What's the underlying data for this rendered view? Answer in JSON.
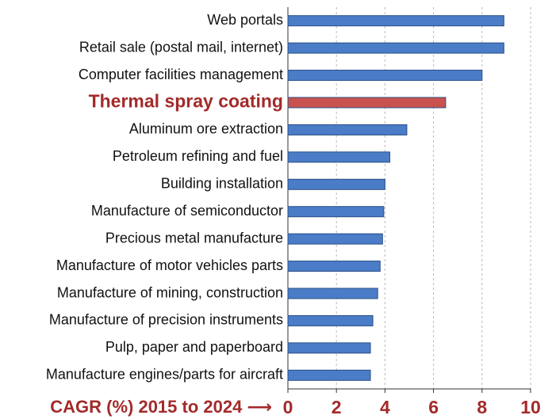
{
  "chart_data": {
    "type": "barh",
    "categories": [
      "Web portals",
      "Retail sale (postal mail, internet)",
      "Computer facilities management",
      "Thermal spray coating",
      "Aluminum ore extraction",
      "Petroleum refining and fuel",
      "Building installation",
      "Manufacture of semiconductor",
      "Precious metal manufacture",
      "Manufacture of motor vehicles parts",
      "Manufacture of mining, construction",
      "Manufacture of precision instruments",
      "Pulp, paper and paperboard",
      "Manufacture engines/parts for aircraft"
    ],
    "values": [
      8.9,
      8.9,
      8.0,
      6.5,
      4.9,
      4.2,
      4.0,
      3.95,
      3.9,
      3.8,
      3.7,
      3.5,
      3.4,
      3.4
    ],
    "colors": [
      "#4a7cc7",
      "#4a7cc7",
      "#4a7cc7",
      "#c9524f",
      "#4a7cc7",
      "#4a7cc7",
      "#4a7cc7",
      "#4a7cc7",
      "#4a7cc7",
      "#4a7cc7",
      "#4a7cc7",
      "#4a7cc7",
      "#4a7cc7",
      "#4a7cc7"
    ],
    "highlight_color": "#c9524f",
    "x_label": "CAGR (%) 2015 to 2024 ⟶",
    "xlim": [
      0,
      10
    ],
    "xticks": [
      0,
      2,
      4,
      6,
      8,
      10
    ],
    "grid": true
  }
}
